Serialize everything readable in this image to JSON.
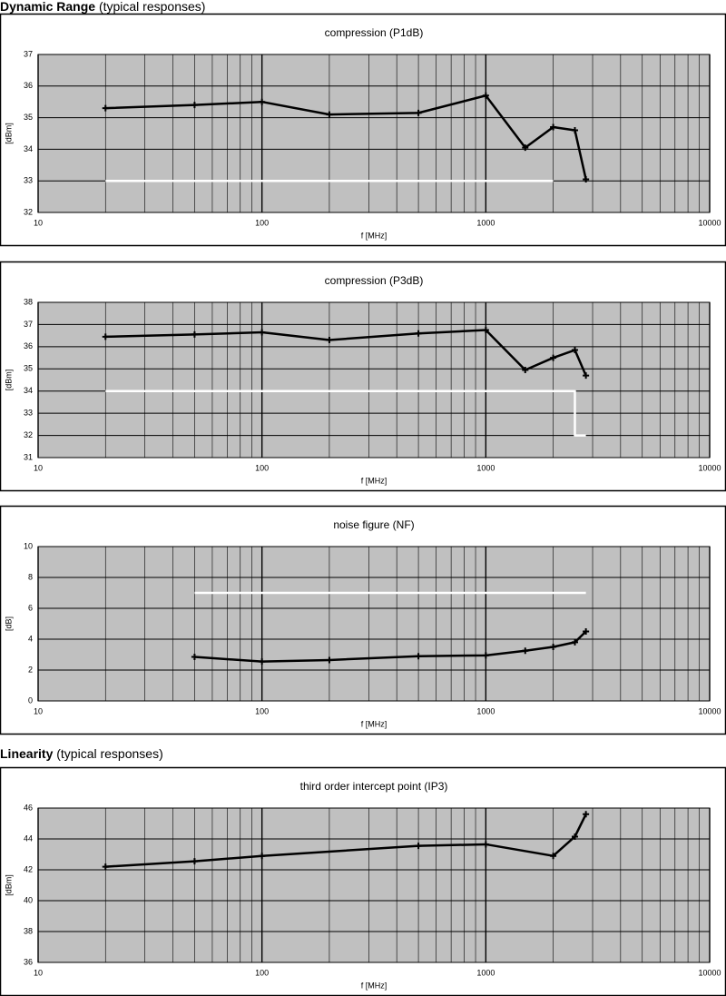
{
  "headings": [
    {
      "bold": "Dynamic Range",
      "rest": "(typical responses)"
    },
    {
      "bold": "Linearity",
      "rest": "(typical responses)"
    }
  ],
  "chart_data": [
    {
      "type": "line",
      "title": "compression (P1dB)",
      "xlabel": "f [MHz]",
      "ylabel": "[dBm]",
      "xscale": "log",
      "xlim": [
        10,
        10000
      ],
      "xticks": [
        10,
        100,
        1000,
        10000
      ],
      "ylim": [
        32,
        37
      ],
      "yticks": [
        32,
        33,
        34,
        35,
        36,
        37
      ],
      "grid": true,
      "background": "#c0c0c0",
      "series": [
        {
          "color": "#ffffff",
          "x": [
            20,
            2000
          ],
          "values": [
            33,
            33
          ]
        },
        {
          "color": "#000000",
          "markers": true,
          "x": [
            20,
            50,
            100,
            200,
            500,
            1000,
            1500,
            2000,
            2500,
            2800
          ],
          "values": [
            35.3,
            35.4,
            35.5,
            35.1,
            35.15,
            35.7,
            34.05,
            34.7,
            34.6,
            33.05
          ]
        }
      ]
    },
    {
      "type": "line",
      "title": "compression (P3dB)",
      "xlabel": "f [MHz]",
      "ylabel": "[dBm]",
      "xscale": "log",
      "xlim": [
        10,
        10000
      ],
      "xticks": [
        10,
        100,
        1000,
        10000
      ],
      "ylim": [
        31,
        38
      ],
      "yticks": [
        31,
        32,
        33,
        34,
        35,
        36,
        37,
        38
      ],
      "grid": true,
      "background": "#c0c0c0",
      "series": [
        {
          "color": "#ffffff",
          "x": [
            20,
            2500,
            2500,
            2800
          ],
          "values": [
            34,
            34,
            32,
            32
          ]
        },
        {
          "color": "#000000",
          "markers": true,
          "x": [
            20,
            50,
            100,
            200,
            500,
            1000,
            1500,
            2000,
            2500,
            2800
          ],
          "values": [
            36.45,
            36.55,
            36.65,
            36.3,
            36.6,
            36.75,
            34.95,
            35.5,
            35.85,
            34.7
          ]
        }
      ]
    },
    {
      "type": "line",
      "title": "noise figure (NF)",
      "xlabel": "f [MHz]",
      "ylabel": "[dB]",
      "xscale": "log",
      "xlim": [
        10,
        10000
      ],
      "xticks": [
        10,
        100,
        1000,
        10000
      ],
      "ylim": [
        0,
        10
      ],
      "yticks": [
        0,
        2,
        4,
        6,
        8,
        10
      ],
      "grid": true,
      "background": "#c0c0c0",
      "series": [
        {
          "color": "#ffffff",
          "x": [
            50,
            2800
          ],
          "values": [
            7,
            7
          ]
        },
        {
          "color": "#000000",
          "markers": true,
          "x": [
            50,
            100,
            200,
            500,
            1000,
            1500,
            2000,
            2500,
            2800
          ],
          "values": [
            2.85,
            2.55,
            2.65,
            2.9,
            2.95,
            3.25,
            3.5,
            3.8,
            4.5
          ]
        }
      ]
    },
    {
      "type": "line",
      "title": "third order intercept point (IP3)",
      "xlabel": "f [MHz]",
      "ylabel": "[dBm]",
      "xscale": "log",
      "xlim": [
        10,
        10000
      ],
      "xticks": [
        10,
        100,
        1000,
        10000
      ],
      "ylim": [
        36,
        46
      ],
      "yticks": [
        36,
        38,
        40,
        42,
        44,
        46
      ],
      "grid": true,
      "background": "#c0c0c0",
      "series": [
        {
          "color": "#000000",
          "markers": true,
          "x": [
            20,
            50,
            100,
            500,
            1000,
            2000,
            2500,
            2800
          ],
          "values": [
            42.2,
            42.55,
            42.9,
            43.55,
            43.65,
            42.9,
            44.15,
            45.6
          ]
        }
      ]
    }
  ]
}
